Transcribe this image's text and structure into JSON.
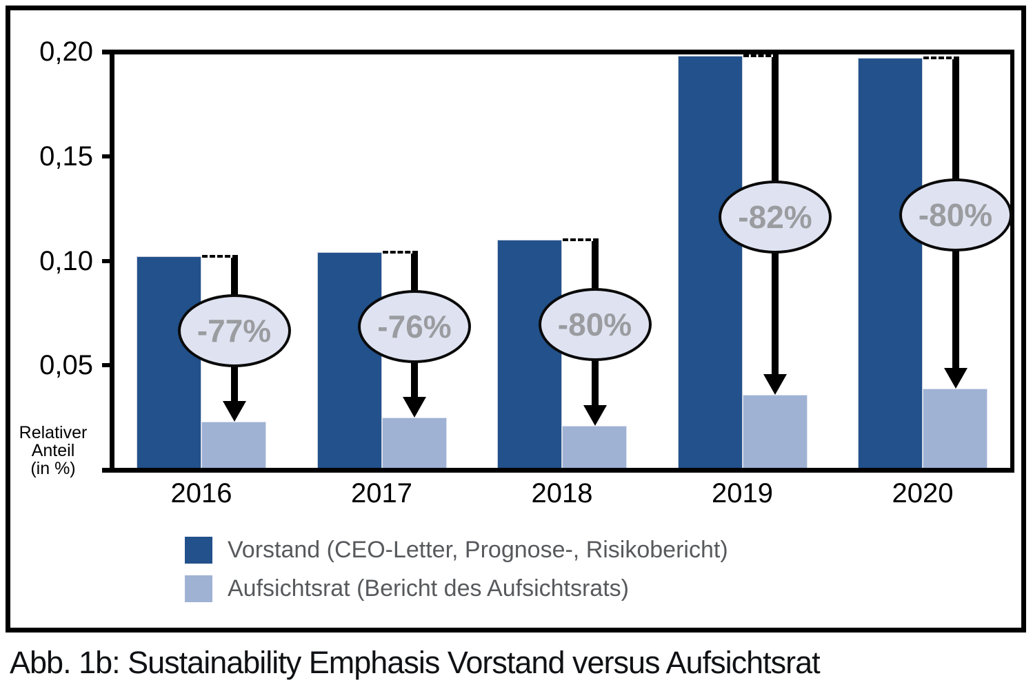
{
  "figure": {
    "caption": "Abb. 1b: Sustainability Emphasis Vorstand versus Aufsichtsrat"
  },
  "axis": {
    "title_lines": [
      "Relativer",
      "Anteil",
      "(in %)"
    ]
  },
  "chart_data": {
    "type": "bar",
    "title": "",
    "xlabel": "",
    "ylabel": "Relativer Anteil (in %)",
    "categories": [
      "2016",
      "2017",
      "2018",
      "2019",
      "2020"
    ],
    "series": [
      {
        "name": "Vorstand (CEO-Letter, Prognose-, Risikobericht)",
        "color": "#22518B",
        "values": [
          0.102,
          0.104,
          0.11,
          0.198,
          0.197
        ]
      },
      {
        "name": "Aufsichtsrat (Bericht des Aufsichtsrats)",
        "color": "#9FB2D4",
        "values": [
          0.023,
          0.025,
          0.021,
          0.036,
          0.039
        ]
      }
    ],
    "drop_labels": [
      "-77%",
      "-76%",
      "-80%",
      "-82%",
      "-80%"
    ],
    "yticks": [
      {
        "value": 0.2,
        "label": "0,20"
      },
      {
        "value": 0.15,
        "label": "0,15"
      },
      {
        "value": 0.1,
        "label": "0,10"
      },
      {
        "value": 0.05,
        "label": "0,05"
      }
    ],
    "ylim": [
      0,
      0.2
    ],
    "grid": false,
    "decimal_separator": ",",
    "legend_position": "bottom-left",
    "annotation_style": "dashed-line-with-down-arrow-and-ellipse"
  },
  "colors": {
    "vorstand_bar": "#22518B",
    "aufsichtsrat_bar": "#9FB2D4",
    "ellipse_fill": "#DFE3F1",
    "ellipse_border": "#0a0a0a",
    "ellipse_text": "#9A9CA0",
    "legend_text": "#57595C",
    "axis": "#000000"
  }
}
